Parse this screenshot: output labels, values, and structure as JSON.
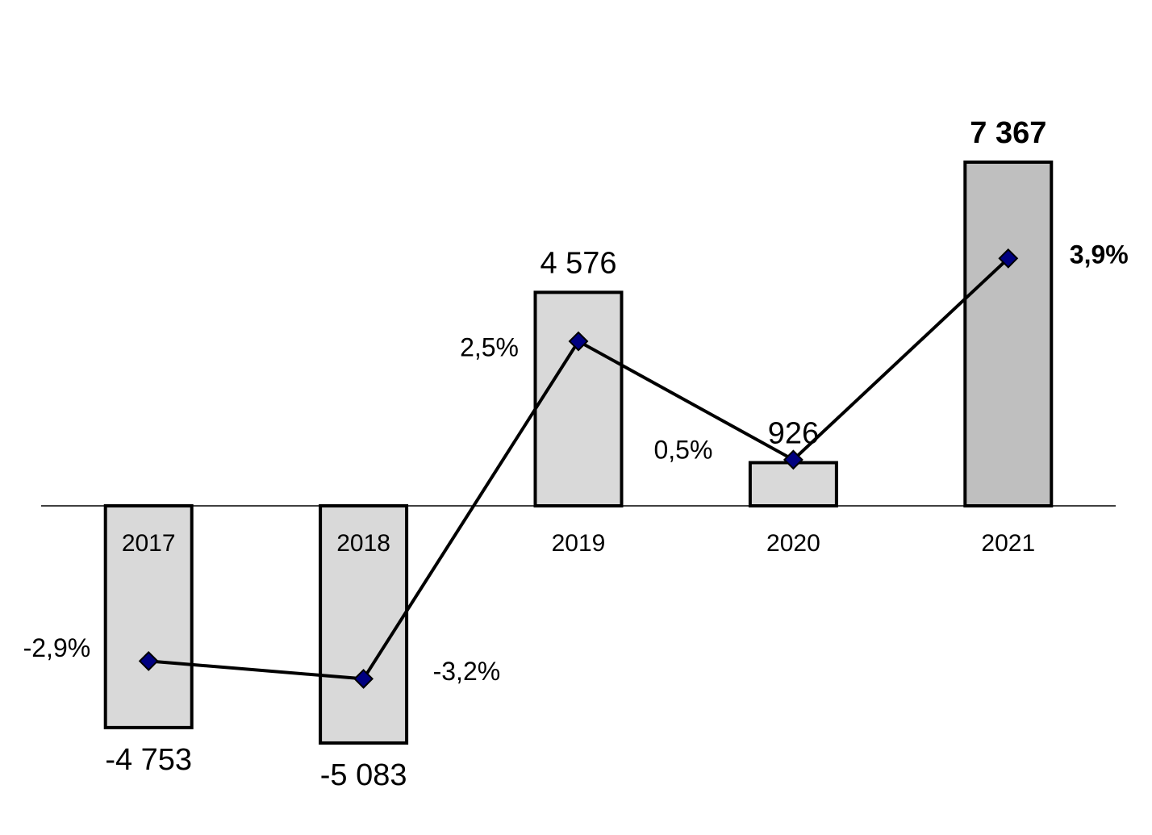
{
  "chart_data": {
    "type": "bar",
    "categories": [
      "2017",
      "2018",
      "2019",
      "2020",
      "2021"
    ],
    "ylim": [
      -6500,
      10000
    ],
    "y2lim": [
      -5.4,
      7.6
    ],
    "series": [
      {
        "type": "bar",
        "colors": [
          "#d9d9d9",
          "#d9d9d9",
          "#d9d9d9",
          "#d9d9d9",
          "#bfbfbf"
        ],
        "values": [
          -4753,
          -5083,
          4576,
          926,
          7367
        ],
        "value_labels": [
          "-4 753",
          "-5 083",
          "4 576",
          "926",
          "7 367"
        ]
      },
      {
        "type": "line",
        "axis": "y2",
        "color": "#000000",
        "marker_color": "#000080",
        "values": [
          -2.9,
          -3.2,
          2.5,
          0.5,
          3.9
        ],
        "value_labels": [
          "-2,9%",
          "-3,2%",
          "2,5%",
          "0,5%",
          "3,9%"
        ]
      }
    ]
  }
}
